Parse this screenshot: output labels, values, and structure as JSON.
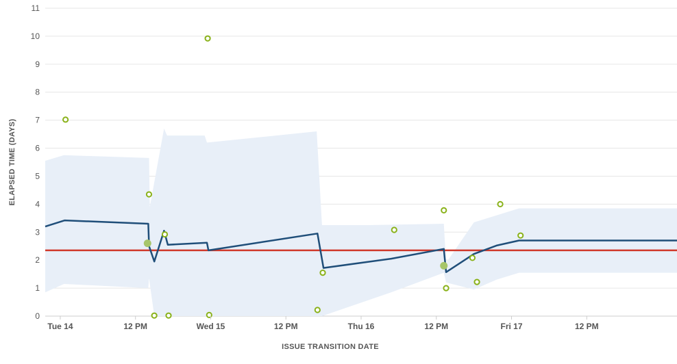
{
  "chart_data": {
    "type": "line",
    "xlabel": "ISSUE TRANSITION DATE",
    "ylabel": "ELAPSED TIME (DAYS)",
    "ylim": [
      0,
      11
    ],
    "yticks": [
      "0",
      "1",
      "2",
      "3",
      "4",
      "5",
      "6",
      "7",
      "8",
      "9",
      "10",
      "11"
    ],
    "xlim_hours": [
      -2,
      82
    ],
    "xticks": [
      {
        "label": "Tue 14",
        "hours": 0
      },
      {
        "label": "12 PM",
        "hours": 10
      },
      {
        "label": "Wed 15",
        "hours": 20
      },
      {
        "label": "12 PM",
        "hours": 30
      },
      {
        "label": "Thu 16",
        "hours": 40
      },
      {
        "label": "12 PM",
        "hours": 50
      },
      {
        "label": "Fri 17",
        "hours": 60
      },
      {
        "label": "12 PM",
        "hours": 70
      }
    ],
    "grid": true,
    "average_line": {
      "value": 2.35,
      "color": "#d0392b"
    },
    "rolling_average": {
      "color": "#1f4e79",
      "points": [
        [
          -2,
          3.2
        ],
        [
          0.6,
          3.42
        ],
        [
          11.7,
          3.3
        ],
        [
          11.8,
          2.5
        ],
        [
          12.5,
          1.95
        ],
        [
          13.8,
          3.05
        ],
        [
          14.3,
          2.55
        ],
        [
          19.5,
          2.62
        ],
        [
          19.7,
          2.35
        ],
        [
          34.2,
          2.95
        ],
        [
          35.0,
          1.72
        ],
        [
          44.0,
          2.05
        ],
        [
          51.0,
          2.4
        ],
        [
          51.3,
          1.57
        ],
        [
          55.0,
          2.22
        ],
        [
          58.0,
          2.52
        ],
        [
          61.0,
          2.7
        ],
        [
          82,
          2.7
        ]
      ]
    },
    "std_dev_band": {
      "color": "#e8eff8",
      "upper": [
        [
          -2,
          5.55
        ],
        [
          0.5,
          5.75
        ],
        [
          11.8,
          5.65
        ],
        [
          11.9,
          3.9
        ],
        [
          13.8,
          6.7
        ],
        [
          14.2,
          6.45
        ],
        [
          19.2,
          6.45
        ],
        [
          19.5,
          6.2
        ],
        [
          34.1,
          6.6
        ],
        [
          34.8,
          3.25
        ],
        [
          41.0,
          3.25
        ],
        [
          51.0,
          3.3
        ],
        [
          51.3,
          1.9
        ],
        [
          55.0,
          3.35
        ],
        [
          58.0,
          3.6
        ],
        [
          61.0,
          3.85
        ],
        [
          82,
          3.85
        ]
      ],
      "lower": [
        [
          82,
          1.55
        ],
        [
          61.0,
          1.55
        ],
        [
          58.0,
          1.3
        ],
        [
          55.0,
          0.95
        ],
        [
          51.3,
          1.2
        ],
        [
          51.0,
          1.55
        ],
        [
          44.0,
          0.85
        ],
        [
          34.8,
          0.0
        ],
        [
          34.1,
          0.0
        ],
        [
          19.5,
          0.0
        ],
        [
          14.3,
          0.0
        ],
        [
          12.5,
          0.0
        ],
        [
          11.8,
          1.35
        ],
        [
          11.7,
          1.0
        ],
        [
          0.5,
          1.15
        ],
        [
          -2,
          0.85
        ]
      ]
    },
    "issues": [
      {
        "x": 0.7,
        "y": 7.02
      },
      {
        "x": 11.8,
        "y": 4.35
      },
      {
        "x": 12.5,
        "y": 0.02
      },
      {
        "x": 13.9,
        "y": 2.92
      },
      {
        "x": 14.4,
        "y": 0.02
      },
      {
        "x": 19.6,
        "y": 9.92
      },
      {
        "x": 19.8,
        "y": 0.04
      },
      {
        "x": 34.2,
        "y": 0.22
      },
      {
        "x": 34.9,
        "y": 1.55
      },
      {
        "x": 44.4,
        "y": 3.08
      },
      {
        "x": 51.0,
        "y": 3.78
      },
      {
        "x": 51.3,
        "y": 1.0
      },
      {
        "x": 54.8,
        "y": 2.08
      },
      {
        "x": 55.4,
        "y": 1.22
      },
      {
        "x": 58.5,
        "y": 4.0
      },
      {
        "x": 61.2,
        "y": 2.88
      }
    ],
    "clusters": [
      {
        "x": 11.6,
        "y": 2.6
      },
      {
        "x": 51.0,
        "y": 1.8
      }
    ],
    "colors": {
      "issue": "#8ab21a",
      "cluster": "#a7c66a",
      "grid": "#e6e6e6",
      "axis": "#cccccc"
    }
  }
}
